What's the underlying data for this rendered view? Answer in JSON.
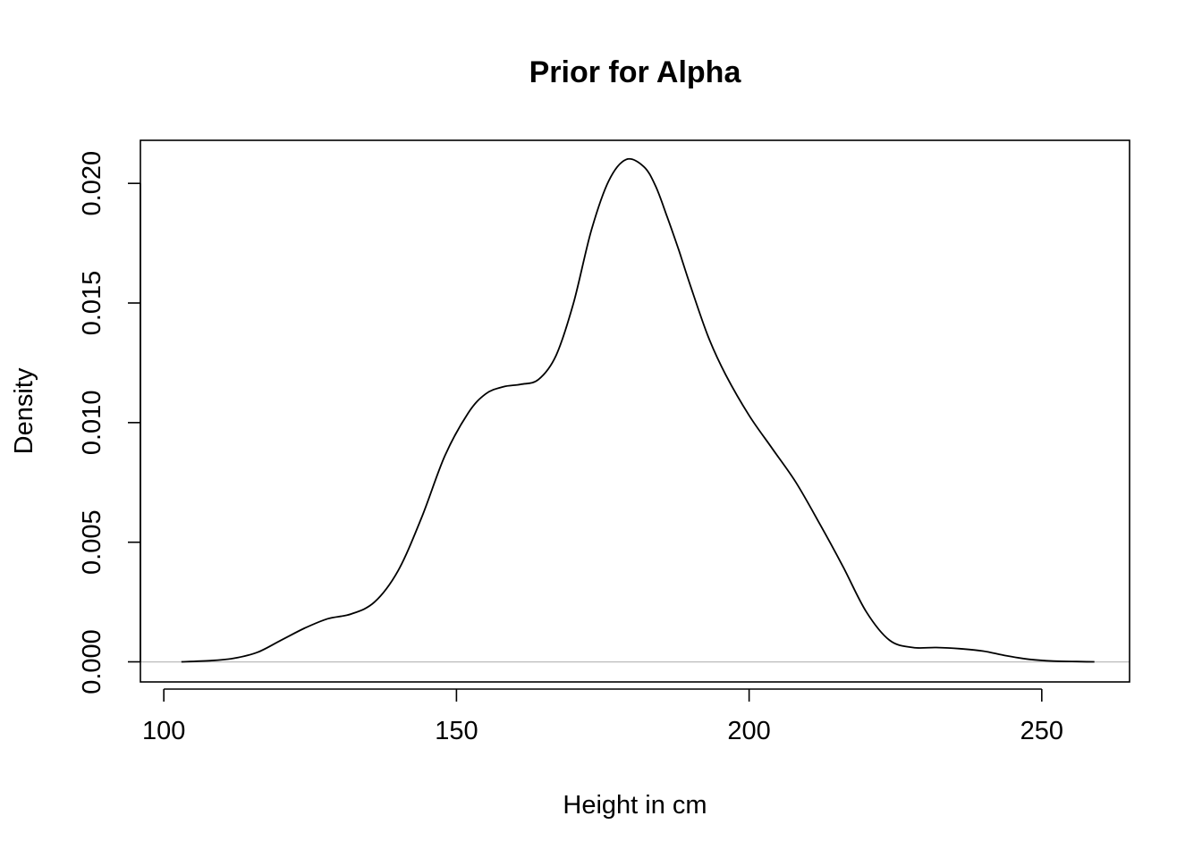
{
  "chart_data": {
    "type": "line",
    "title": "Prior for Alpha",
    "xlabel": "Height in cm",
    "ylabel": "Density",
    "xlim": [
      96,
      265
    ],
    "ylim": [
      -0.00084,
      0.0218
    ],
    "x_ticks": [
      100,
      150,
      200,
      250
    ],
    "x_tick_labels": [
      "100",
      "150",
      "200",
      "250"
    ],
    "y_ticks": [
      0.0,
      0.005,
      0.01,
      0.015,
      0.02
    ],
    "y_tick_labels": [
      "0.000",
      "0.005",
      "0.010",
      "0.015",
      "0.020"
    ],
    "reference_line": {
      "y": 0,
      "color": "#bebebe"
    },
    "grid": false,
    "legend": "none",
    "series": [
      {
        "color": "#000000",
        "x": [
          103,
          108,
          112,
          116,
          120,
          124,
          128,
          132,
          136,
          140,
          144,
          148,
          152,
          155,
          158,
          161,
          164,
          167,
          170,
          173,
          176,
          179,
          182,
          184,
          186,
          188,
          190,
          193,
          196,
          200,
          204,
          208,
          212,
          216,
          220,
          224,
          228,
          232,
          236,
          240,
          244,
          248,
          252,
          256,
          259
        ],
        "y": [
          0.0,
          5e-05,
          0.00015,
          0.0004,
          0.0009,
          0.0014,
          0.0018,
          0.002,
          0.0025,
          0.0038,
          0.006,
          0.0086,
          0.0104,
          0.0112,
          0.0115,
          0.0116,
          0.0118,
          0.0128,
          0.015,
          0.018,
          0.0201,
          0.021,
          0.0207,
          0.0199,
          0.0186,
          0.0172,
          0.0157,
          0.0136,
          0.012,
          0.0103,
          0.0089,
          0.0075,
          0.0058,
          0.004,
          0.0021,
          0.0009,
          0.0006,
          0.0006,
          0.00055,
          0.00045,
          0.00025,
          0.0001,
          3e-05,
          1e-05,
          0.0
        ]
      }
    ]
  }
}
